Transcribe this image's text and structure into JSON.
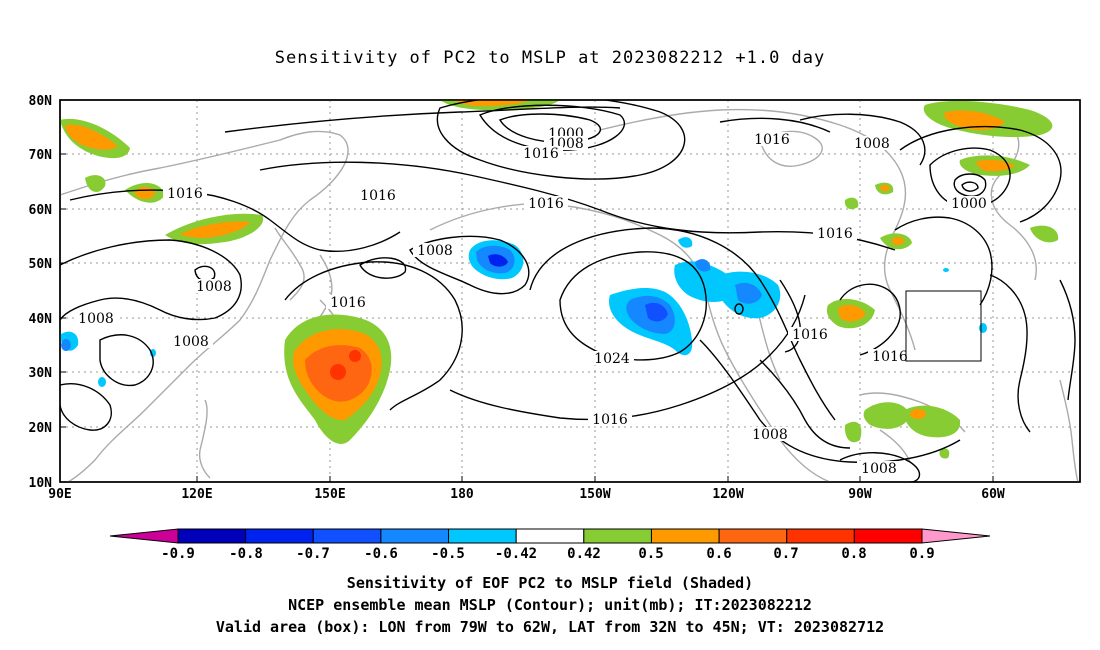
{
  "title": "Sensitivity of PC2 to MSLP at 2023082212 +1.0 day",
  "map": {
    "lon_ticks": [
      "90E",
      "120E",
      "150E",
      "180",
      "150W",
      "120W",
      "90W",
      "60W"
    ],
    "lat_ticks": [
      "80N",
      "70N",
      "60N",
      "50N",
      "40N",
      "30N",
      "20N",
      "10N"
    ],
    "valid_box": {
      "lon": [
        -79,
        -62
      ],
      "lat": [
        32,
        45
      ]
    },
    "contour_labels": [
      "1000",
      "1008",
      "1016",
      "1016",
      "1008",
      "1016",
      "1000",
      "1016",
      "1016",
      "1008",
      "1016",
      "1008",
      "1008",
      "1008",
      "1016",
      "1024",
      "1016",
      "1016",
      "1016",
      "1008",
      "1008"
    ]
  },
  "colorbar": {
    "labels": [
      "-0.9",
      "-0.8",
      "-0.7",
      "-0.6",
      "-0.5",
      "-0.42",
      "0.42",
      "0.5",
      "0.6",
      "0.7",
      "0.8",
      "0.9"
    ],
    "colors": [
      "#0000bb",
      "#0022ee",
      "#1150ff",
      "#1688ff",
      "#00c8ff",
      "#ffffff",
      "#88cc33",
      "#ff9900",
      "#ff6611",
      "#ff3300",
      "#ff0000"
    ],
    "low_extend_color": "#cc0099",
    "high_extend_color": "#ff99cc"
  },
  "captions": {
    "line1": "Sensitivity of EOF PC2 to MSLP field (Shaded)",
    "line2": "NCEP ensemble mean MSLP (Contour); unit(mb); IT:2023082212",
    "line3": "Valid area (box): LON from 79W to 62W, LAT from 32N to 45N; VT: 2023082712"
  }
}
